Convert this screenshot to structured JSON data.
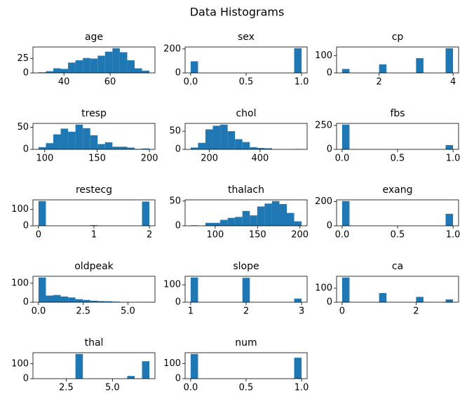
{
  "title": "Data Histograms",
  "chart_data": [
    {
      "type": "histogram",
      "title": "age",
      "color": "#1f77b4",
      "bins": [
        29,
        32.2,
        35.4,
        38.6,
        41.8,
        45,
        48.2,
        51.4,
        54.6,
        57.8,
        61,
        64.2,
        67.4,
        70.6,
        73.8,
        77
      ],
      "values": [
        1,
        3,
        8,
        7,
        18,
        22,
        26,
        25,
        30,
        37,
        43,
        36,
        22,
        8,
        4
      ],
      "xlim": [
        26.6,
        79.4
      ],
      "ylim": [
        0,
        45.15
      ],
      "xticks": [
        40,
        60
      ],
      "yticks": [
        0,
        25
      ]
    },
    {
      "type": "histogram",
      "title": "sex",
      "color": "#1f77b4",
      "bins": [
        0,
        0.0667,
        0.1333,
        0.2,
        0.2667,
        0.3333,
        0.4,
        0.4667,
        0.5333,
        0.6,
        0.6667,
        0.7333,
        0.8,
        0.8667,
        0.9333,
        1
      ],
      "values": [
        97,
        0,
        0,
        0,
        0,
        0,
        0,
        0,
        0,
        0,
        0,
        0,
        0,
        0,
        206
      ],
      "xlim": [
        -0.05,
        1.05
      ],
      "ylim": [
        0,
        216.3
      ],
      "xticks": [
        {
          "value": 0,
          "label": "0.0"
        },
        0.5,
        {
          "value": 1,
          "label": "1.0"
        }
      ],
      "yticks": [
        0,
        200
      ]
    },
    {
      "type": "histogram",
      "title": "cp",
      "color": "#1f77b4",
      "bins": [
        1,
        1.2,
        1.4,
        1.6,
        1.8,
        2,
        2.2,
        2.4,
        2.6,
        2.8,
        3,
        3.2,
        3.4,
        3.6,
        3.8,
        4
      ],
      "values": [
        23,
        0,
        0,
        0,
        0,
        50,
        0,
        0,
        0,
        0,
        86,
        0,
        0,
        0,
        144
      ],
      "xlim": [
        0.85,
        4.15
      ],
      "ylim": [
        0,
        151.2
      ],
      "xticks": [
        2,
        4
      ],
      "yticks": [
        0,
        100
      ]
    },
    {
      "type": "histogram",
      "title": "tresp",
      "color": "#1f77b4",
      "bins": [
        94,
        101.07,
        108.13,
        115.2,
        122.27,
        129.33,
        136.4,
        143.47,
        150.53,
        157.6,
        164.67,
        171.73,
        178.8,
        185.87,
        192.93,
        200
      ],
      "values": [
        5,
        14,
        34,
        47,
        40,
        56,
        48,
        32,
        12,
        16,
        6,
        6,
        4,
        1,
        2
      ],
      "xlim": [
        88.7,
        205.3
      ],
      "ylim": [
        0,
        58.8
      ],
      "xticks": [
        100,
        150,
        200
      ],
      "yticks": [
        0,
        50
      ]
    },
    {
      "type": "histogram",
      "title": "chol",
      "color": "#1f77b4",
      "bins": [
        126,
        155.2,
        184.4,
        213.6,
        242.8,
        272,
        301.2,
        330.4,
        359.6,
        388.8,
        418,
        447.2,
        476.4,
        505.6,
        534.8,
        564
      ],
      "values": [
        5,
        18,
        55,
        65,
        68,
        50,
        28,
        20,
        6,
        4,
        3,
        0,
        0,
        0,
        1
      ],
      "xlim": [
        104.1,
        585.9
      ],
      "ylim": [
        0,
        71.4
      ],
      "xticks": [
        200,
        400
      ],
      "yticks": [
        0,
        50
      ]
    },
    {
      "type": "histogram",
      "title": "fbs",
      "color": "#1f77b4",
      "bins": [
        0,
        0.0667,
        0.1333,
        0.2,
        0.2667,
        0.3333,
        0.4,
        0.4667,
        0.5333,
        0.6,
        0.6667,
        0.7333,
        0.8,
        0.8667,
        0.9333,
        1
      ],
      "values": [
        258,
        0,
        0,
        0,
        0,
        0,
        0,
        0,
        0,
        0,
        0,
        0,
        0,
        0,
        45
      ],
      "xlim": [
        -0.05,
        1.05
      ],
      "ylim": [
        0,
        270.9
      ],
      "xticks": [
        {
          "value": 0,
          "label": "0.0"
        },
        0.5,
        {
          "value": 1,
          "label": "1.0"
        }
      ],
      "yticks": [
        0,
        250
      ]
    },
    {
      "type": "histogram",
      "title": "restecg",
      "color": "#1f77b4",
      "bins": [
        0,
        0.1333,
        0.2667,
        0.4,
        0.5333,
        0.6667,
        0.8,
        0.9333,
        1.0667,
        1.2,
        1.3333,
        1.4667,
        1.6,
        1.7333,
        1.8667,
        2
      ],
      "values": [
        151,
        0,
        0,
        0,
        0,
        0,
        0,
        4,
        0,
        0,
        0,
        0,
        0,
        0,
        148
      ],
      "xlim": [
        -0.1,
        2.1
      ],
      "ylim": [
        0,
        158.55
      ],
      "xticks": [
        0,
        1,
        2
      ],
      "yticks": [
        0,
        100
      ]
    },
    {
      "type": "histogram",
      "title": "thalach",
      "color": "#1f77b4",
      "bins": [
        71,
        79.73,
        88.47,
        97.2,
        105.93,
        114.67,
        123.4,
        132.13,
        140.87,
        149.6,
        158.33,
        167.07,
        175.8,
        184.53,
        193.27,
        202
      ],
      "values": [
        1,
        0,
        6,
        6,
        12,
        16,
        18,
        30,
        21,
        39,
        45,
        50,
        44,
        26,
        9
      ],
      "xlim": [
        64.45,
        208.55
      ],
      "ylim": [
        0,
        52.5
      ],
      "xticks": [
        100,
        150,
        200
      ],
      "yticks": [
        0,
        50
      ]
    },
    {
      "type": "histogram",
      "title": "exang",
      "color": "#1f77b4",
      "bins": [
        0,
        0.0667,
        0.1333,
        0.2,
        0.2667,
        0.3333,
        0.4,
        0.4667,
        0.5333,
        0.6,
        0.6667,
        0.7333,
        0.8,
        0.8667,
        0.9333,
        1
      ],
      "values": [
        204,
        0,
        0,
        0,
        0,
        0,
        0,
        0,
        0,
        0,
        0,
        0,
        0,
        0,
        99
      ],
      "xlim": [
        -0.05,
        1.05
      ],
      "ylim": [
        0,
        214.2
      ],
      "xticks": [
        {
          "value": 0,
          "label": "0.0"
        },
        0.5,
        {
          "value": 1,
          "label": "1.0"
        }
      ],
      "yticks": [
        0,
        200
      ]
    },
    {
      "type": "histogram",
      "title": "oldpeak",
      "color": "#1f77b4",
      "bins": [
        0,
        0.4133,
        0.8267,
        1.24,
        1.6533,
        2.0667,
        2.48,
        2.8933,
        3.3067,
        3.72,
        4.1333,
        4.5467,
        4.96,
        5.3733,
        5.7867,
        6.2
      ],
      "values": [
        130,
        35,
        38,
        30,
        25,
        16,
        12,
        8,
        6,
        5,
        3,
        1,
        0,
        0,
        1
      ],
      "xlim": [
        -0.31,
        6.51
      ],
      "ylim": [
        0,
        136.5
      ],
      "xticks": [
        {
          "value": 0,
          "label": "0.0"
        },
        2.5,
        {
          "value": 5,
          "label": "5.0"
        }
      ],
      "yticks": [
        0,
        100
      ]
    },
    {
      "type": "histogram",
      "title": "slope",
      "color": "#1f77b4",
      "bins": [
        1,
        1.1333,
        1.2667,
        1.4,
        1.5333,
        1.6667,
        1.8,
        1.9333,
        2.0667,
        2.2,
        2.3333,
        2.4667,
        2.6,
        2.7333,
        2.8667,
        3
      ],
      "values": [
        142,
        0,
        0,
        0,
        0,
        0,
        0,
        140,
        0,
        0,
        0,
        0,
        0,
        0,
        21
      ],
      "xlim": [
        0.9,
        3.1
      ],
      "ylim": [
        0,
        149.1
      ],
      "xticks": [
        1,
        2,
        3
      ],
      "yticks": [
        0,
        100
      ]
    },
    {
      "type": "histogram",
      "title": "ca",
      "color": "#1f77b4",
      "bins": [
        0,
        0.2,
        0.4,
        0.6,
        0.8,
        1,
        1.2,
        1.4,
        1.6,
        1.8,
        2,
        2.2,
        2.4,
        2.6,
        2.8,
        3
      ],
      "values": [
        176,
        0,
        0,
        0,
        0,
        65,
        0,
        0,
        0,
        0,
        38,
        0,
        0,
        0,
        20
      ],
      "xlim": [
        -0.15,
        3.15
      ],
      "ylim": [
        0,
        184.8
      ],
      "xticks": [
        0,
        2
      ],
      "yticks": [
        0,
        100
      ]
    },
    {
      "type": "histogram",
      "title": "thal",
      "color": "#1f77b4",
      "bins": [
        1,
        1.4,
        1.8,
        2.2,
        2.6,
        3,
        3.4,
        3.8,
        4.2,
        4.6,
        5,
        5.4,
        5.8,
        6.2,
        6.6,
        7
      ],
      "values": [
        0,
        0,
        0,
        0,
        0,
        166,
        0,
        0,
        0,
        0,
        0,
        0,
        18,
        0,
        117
      ],
      "xlim": [
        0.7,
        7.3
      ],
      "ylim": [
        0,
        174.3
      ],
      "xticks": [
        2.5,
        {
          "value": 5,
          "label": "5.0"
        }
      ],
      "yticks": [
        0,
        100
      ]
    },
    {
      "type": "histogram",
      "title": "num",
      "color": "#1f77b4",
      "bins": [
        0,
        0.0667,
        0.1333,
        0.2,
        0.2667,
        0.3333,
        0.4,
        0.4667,
        0.5333,
        0.6,
        0.6667,
        0.7333,
        0.8,
        0.8667,
        0.9333,
        1
      ],
      "values": [
        164,
        0,
        0,
        0,
        0,
        0,
        0,
        0,
        0,
        0,
        0,
        0,
        0,
        0,
        139
      ],
      "xlim": [
        -0.05,
        1.05
      ],
      "ylim": [
        0,
        172.2
      ],
      "xticks": [
        {
          "value": 0,
          "label": "0.0"
        },
        0.5,
        {
          "value": 1,
          "label": "1.0"
        }
      ],
      "yticks": [
        0,
        100
      ]
    }
  ]
}
